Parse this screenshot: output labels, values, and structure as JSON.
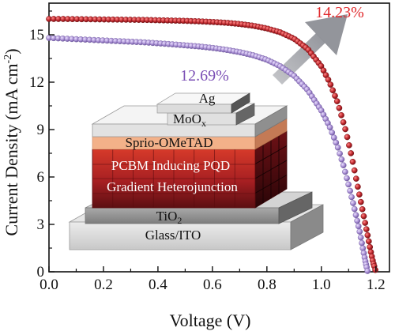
{
  "chart_data": {
    "type": "line",
    "title": "",
    "xlabel": "Voltage (V)",
    "ylabel_main": "Current Density (mA cm",
    "ylabel_sup": "-2",
    "ylabel_close": ")",
    "xlim": [
      0.0,
      1.25
    ],
    "ylim": [
      0,
      17
    ],
    "xticks": [
      "0.0",
      "0.2",
      "0.4",
      "0.6",
      "0.8",
      "1.0",
      "1.2"
    ],
    "xtick_values": [
      0.0,
      0.2,
      0.4,
      0.6,
      0.8,
      1.0,
      1.2
    ],
    "yticks": [
      "0",
      "3",
      "6",
      "9",
      "12",
      "15"
    ],
    "ytick_values": [
      0,
      3,
      6,
      9,
      12,
      15
    ],
    "grid": false,
    "legend": "none",
    "series": [
      {
        "label": "14.23%",
        "color": "#c0282d",
        "marker": "circle",
        "x": [
          0.0,
          0.05,
          0.1,
          0.15,
          0.2,
          0.25,
          0.3,
          0.35,
          0.4,
          0.45,
          0.5,
          0.55,
          0.6,
          0.65,
          0.7,
          0.75,
          0.8,
          0.85,
          0.9,
          0.95,
          1.0,
          1.03,
          1.06,
          1.09,
          1.11,
          1.13,
          1.15,
          1.17,
          1.18,
          1.19,
          1.2
        ],
        "y": [
          16.0,
          16.0,
          15.99,
          15.98,
          15.97,
          15.96,
          15.95,
          15.94,
          15.92,
          15.9,
          15.88,
          15.85,
          15.81,
          15.76,
          15.68,
          15.57,
          15.4,
          15.15,
          14.75,
          14.1,
          13.0,
          12.0,
          10.7,
          8.9,
          7.4,
          5.7,
          4.0,
          2.3,
          1.4,
          0.6,
          0.0
        ]
      },
      {
        "label": "12.69%",
        "color": "#a98fd4",
        "marker": "circle",
        "x": [
          0.0,
          0.05,
          0.1,
          0.15,
          0.2,
          0.25,
          0.3,
          0.35,
          0.4,
          0.45,
          0.5,
          0.55,
          0.6,
          0.65,
          0.7,
          0.75,
          0.8,
          0.85,
          0.9,
          0.95,
          1.0,
          1.03,
          1.06,
          1.08,
          1.1,
          1.12,
          1.14,
          1.15,
          1.16,
          1.17
        ],
        "y": [
          14.8,
          14.76,
          14.72,
          14.68,
          14.64,
          14.6,
          14.56,
          14.52,
          14.46,
          14.4,
          14.33,
          14.26,
          14.17,
          14.05,
          13.9,
          13.7,
          13.42,
          13.0,
          12.4,
          11.5,
          10.2,
          9.2,
          7.9,
          6.8,
          5.5,
          4.1,
          2.6,
          1.7,
          0.8,
          0.0
        ]
      }
    ],
    "annotations": {
      "red_efficiency": "14.23%",
      "purple_efficiency": "12.69%",
      "red_color": "#e0282b",
      "purple_color": "#7b4fb5"
    },
    "inset_device_layers": [
      {
        "label": "Ag",
        "sub": ""
      },
      {
        "label": "MoO",
        "sub": "x"
      },
      {
        "label": "Sprio-OMeTAD",
        "sub": ""
      },
      {
        "label": "PCBM Inducing PQD",
        "sub": ""
      },
      {
        "label": "Gradient Heterojunction",
        "sub": ""
      },
      {
        "label": "TiO",
        "sub": "2"
      },
      {
        "label": "Glass/ITO",
        "sub": ""
      }
    ]
  }
}
